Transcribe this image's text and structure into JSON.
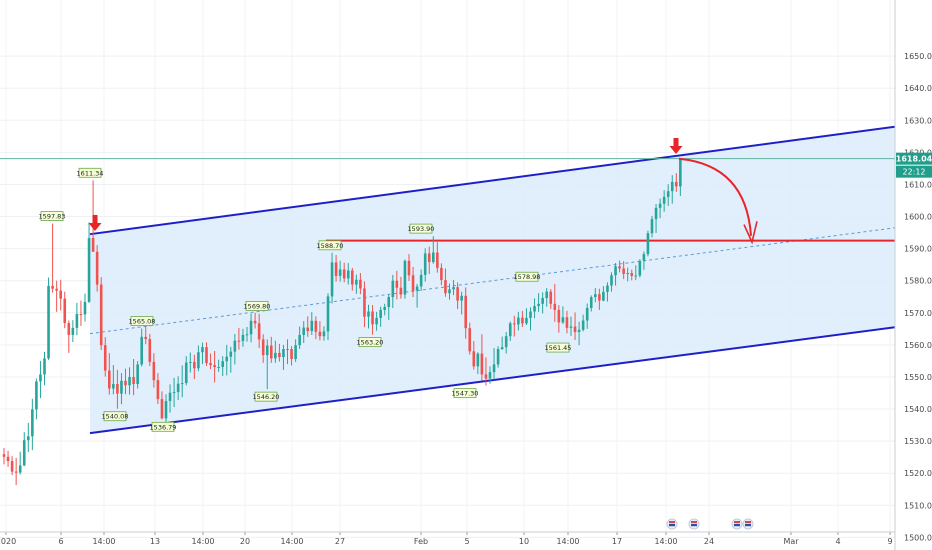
{
  "colors": {
    "up": "#26a69a",
    "down": "#ef5350",
    "channel": "#1f1fc8",
    "channel_fill": "#dcecfb",
    "resistance": "#e8252b",
    "midline": "#5b9bd5",
    "current_line": "#5fb3a2",
    "marker_arrow": "#e8252b",
    "label_bg": "#f6ffd6",
    "label_border": "#6aa84f",
    "price_badge": "#1f9e8c"
  },
  "chart_data": {
    "type": "candlestick",
    "y_axis": {
      "min": 1497,
      "max": 1665,
      "ticks": [
        "1650.00",
        "1640.00",
        "1630.00",
        "1620.00",
        "1610.00",
        "1600.00",
        "1590.00",
        "1580.00",
        "1570.00",
        "1560.00",
        "1550.00",
        "1540.00",
        "1530.00",
        "1520.00",
        "1510.00",
        "1500.00"
      ],
      "position": "right"
    },
    "x_axis": {
      "ticks": [
        "2020",
        "6",
        "14:00",
        "13",
        "14:00",
        "20",
        "14:00",
        "27",
        "Feb",
        "5",
        "10",
        "14:00",
        "17",
        "14:00",
        "24",
        "Mar",
        "4",
        "9"
      ]
    },
    "current_price": {
      "value": "1618.04",
      "time": "22:12"
    },
    "price_labels": [
      "1597.83",
      "1611.34",
      "1565.08",
      "1569.80",
      "1588.70",
      "1593.90",
      "1578.98",
      "1540.08",
      "1536.79",
      "1546.20",
      "1563.20",
      "1547.30",
      "1561.45"
    ],
    "channel": {
      "upper_start": 1594.5,
      "upper_end": 1628,
      "lower_start": 1532.5,
      "lower_end": 1565.5,
      "mid_start": 1563.5,
      "mid_end": 1596.5
    },
    "resistance_level": 1592.5,
    "candles": [
      [
        1525.9,
        1527.8,
        1522.7,
        1525.1
      ],
      [
        1525.1,
        1527.0,
        1522.0,
        1523.8
      ],
      [
        1523.8,
        1525.3,
        1519.4,
        1520.5
      ],
      [
        1520.5,
        1524.8,
        1516.3,
        1520.2
      ],
      [
        1520.2,
        1526.7,
        1519.6,
        1522.4
      ],
      [
        1522.4,
        1532.8,
        1522.2,
        1530.3
      ],
      [
        1530.3,
        1535.7,
        1526.6,
        1531.5
      ],
      [
        1531.5,
        1543.2,
        1527.2,
        1539.9
      ],
      [
        1539.9,
        1549.5,
        1536.8,
        1548.6
      ],
      [
        1548.6,
        1555.0,
        1543.4,
        1550.8
      ],
      [
        1550.8,
        1557.8,
        1547.4,
        1555.8
      ],
      [
        1555.8,
        1581.0,
        1555.3,
        1578.4
      ],
      [
        1578.4,
        1597.8,
        1576.3,
        1577.5
      ],
      [
        1577.5,
        1580.0,
        1570.3,
        1576.9
      ],
      [
        1576.9,
        1580.3,
        1570.7,
        1574.4
      ],
      [
        1574.4,
        1576.6,
        1565.2,
        1566.8
      ],
      [
        1566.8,
        1567.6,
        1557.5,
        1563.1
      ],
      [
        1563.1,
        1567.7,
        1560.9,
        1565.3
      ],
      [
        1565.3,
        1573.1,
        1563.0,
        1569.6
      ],
      [
        1569.6,
        1573.8,
        1565.9,
        1569.5
      ],
      [
        1569.5,
        1576.0,
        1567.3,
        1573.4
      ],
      [
        1573.4,
        1598.2,
        1573.1,
        1593.3
      ],
      [
        1593.3,
        1611.3,
        1590.1,
        1589.0
      ],
      [
        1589.0,
        1591.1,
        1576.6,
        1578.8
      ],
      [
        1578.8,
        1581.1,
        1558.4,
        1559.9
      ],
      [
        1559.9,
        1562.4,
        1550.1,
        1552.0
      ],
      [
        1552.0,
        1557.4,
        1544.5,
        1546.4
      ],
      [
        1546.4,
        1553.7,
        1544.6,
        1547.8
      ],
      [
        1547.8,
        1552.2,
        1540.1,
        1544.8
      ],
      [
        1544.8,
        1551.2,
        1541.5,
        1548.8
      ],
      [
        1548.8,
        1552.6,
        1544.6,
        1547.4
      ],
      [
        1547.4,
        1553.0,
        1544.5,
        1550.0
      ],
      [
        1550.0,
        1555.6,
        1544.3,
        1547.8
      ],
      [
        1547.8,
        1555.0,
        1546.4,
        1553.9
      ],
      [
        1553.9,
        1565.1,
        1553.3,
        1562.5
      ],
      [
        1562.5,
        1566.2,
        1560.2,
        1561.8
      ],
      [
        1561.8,
        1563.4,
        1553.4,
        1554.7
      ],
      [
        1554.7,
        1557.4,
        1546.7,
        1549.0
      ],
      [
        1549.0,
        1551.2,
        1541.6,
        1543.1
      ],
      [
        1543.1,
        1545.5,
        1536.8,
        1537.1
      ],
      [
        1537.1,
        1544.6,
        1534.7,
        1542.5
      ],
      [
        1542.5,
        1547.7,
        1538.9,
        1545.1
      ],
      [
        1545.1,
        1549.7,
        1540.6,
        1545.3
      ],
      [
        1545.3,
        1550.2,
        1542.8,
        1547.9
      ],
      [
        1547.9,
        1553.6,
        1543.7,
        1548.1
      ],
      [
        1548.1,
        1556.5,
        1547.4,
        1554.5
      ],
      [
        1554.5,
        1557.6,
        1551.4,
        1554.7
      ],
      [
        1554.7,
        1556.9,
        1549.3,
        1552.7
      ],
      [
        1552.7,
        1559.8,
        1551.8,
        1557.7
      ],
      [
        1557.7,
        1560.7,
        1554.0,
        1559.3
      ],
      [
        1559.3,
        1560.8,
        1553.4,
        1554.3
      ],
      [
        1554.3,
        1557.3,
        1552.4,
        1553.7
      ],
      [
        1553.7,
        1558.1,
        1548.3,
        1553.1
      ],
      [
        1553.1,
        1555.4,
        1551.6,
        1553.1
      ],
      [
        1553.1,
        1556.5,
        1550.3,
        1554.9
      ],
      [
        1554.9,
        1560.0,
        1550.5,
        1556.3
      ],
      [
        1556.3,
        1559.4,
        1551.3,
        1557.9
      ],
      [
        1557.9,
        1563.4,
        1553.9,
        1561.3
      ],
      [
        1561.3,
        1565.3,
        1558.5,
        1561.2
      ],
      [
        1561.2,
        1565.0,
        1559.4,
        1563.1
      ],
      [
        1563.1,
        1565.6,
        1561.0,
        1563.3
      ],
      [
        1563.3,
        1569.8,
        1560.8,
        1567.5
      ],
      [
        1567.5,
        1570.0,
        1565.1,
        1566.7
      ],
      [
        1566.7,
        1569.7,
        1559.0,
        1561.7
      ],
      [
        1561.7,
        1563.3,
        1554.4,
        1556.8
      ],
      [
        1556.8,
        1561.7,
        1546.2,
        1559.8
      ],
      [
        1559.8,
        1562.5,
        1554.4,
        1555.8
      ],
      [
        1555.8,
        1561.3,
        1554.4,
        1557.5
      ],
      [
        1557.5,
        1560.3,
        1554.8,
        1556.2
      ],
      [
        1556.2,
        1560.0,
        1552.2,
        1558.7
      ],
      [
        1558.7,
        1561.7,
        1554.0,
        1558.6
      ],
      [
        1558.7,
        1559.6,
        1553.6,
        1555.6
      ],
      [
        1555.6,
        1561.7,
        1554.7,
        1559.9
      ],
      [
        1559.9,
        1565.7,
        1558.7,
        1563.1
      ],
      [
        1563.1,
        1567.4,
        1560.6,
        1565.4
      ],
      [
        1565.4,
        1568.9,
        1562.5,
        1564.3
      ],
      [
        1564.3,
        1570.2,
        1563.1,
        1567.5
      ],
      [
        1567.5,
        1568.9,
        1561.8,
        1564.1
      ],
      [
        1564.1,
        1567.4,
        1561.4,
        1562.7
      ],
      [
        1562.7,
        1565.8,
        1561.3,
        1564.2
      ],
      [
        1564.2,
        1576.1,
        1561.5,
        1575.1
      ],
      [
        1575.1,
        1588.7,
        1572.9,
        1585.7
      ],
      [
        1585.7,
        1588.0,
        1579.7,
        1581.5
      ],
      [
        1581.5,
        1586.2,
        1579.7,
        1583.5
      ],
      [
        1583.5,
        1585.6,
        1579.5,
        1580.7
      ],
      [
        1580.7,
        1585.5,
        1578.8,
        1583.2
      ],
      [
        1583.2,
        1584.0,
        1576.9,
        1578.8
      ],
      [
        1578.8,
        1581.9,
        1575.9,
        1580.3
      ],
      [
        1580.3,
        1582.4,
        1575.8,
        1577.6
      ],
      [
        1577.6,
        1579.8,
        1565.5,
        1568.8
      ],
      [
        1568.8,
        1572.5,
        1565.1,
        1570.4
      ],
      [
        1570.4,
        1572.4,
        1563.2,
        1566.4
      ],
      [
        1566.4,
        1570.3,
        1564.4,
        1568.4
      ],
      [
        1568.4,
        1571.9,
        1565.6,
        1570.9
      ],
      [
        1570.9,
        1572.8,
        1569.2,
        1571.8
      ],
      [
        1571.8,
        1575.6,
        1567.8,
        1574.9
      ],
      [
        1574.9,
        1581.8,
        1571.5,
        1580.0
      ],
      [
        1580.0,
        1583.1,
        1574.2,
        1577.8
      ],
      [
        1577.8,
        1581.2,
        1574.4,
        1575.7
      ],
      [
        1575.7,
        1586.6,
        1574.4,
        1586.2
      ],
      [
        1586.2,
        1588.3,
        1579.9,
        1581.7
      ],
      [
        1581.7,
        1584.3,
        1574.9,
        1576.9
      ],
      [
        1576.9,
        1579.0,
        1571.6,
        1578.2
      ],
      [
        1578.2,
        1583.5,
        1576.8,
        1581.8
      ],
      [
        1581.8,
        1590.1,
        1579.7,
        1588.5
      ],
      [
        1588.5,
        1590.6,
        1582.1,
        1585.8
      ],
      [
        1585.8,
        1593.9,
        1585.3,
        1588.8
      ],
      [
        1588.8,
        1592.0,
        1582.5,
        1584.0
      ],
      [
        1584.0,
        1585.4,
        1578.6,
        1580.2
      ],
      [
        1580.2,
        1583.8,
        1575.0,
        1576.1
      ],
      [
        1576.1,
        1579.1,
        1574.1,
        1577.3
      ],
      [
        1577.3,
        1580.2,
        1575.5,
        1578.0
      ],
      [
        1578.0,
        1579.5,
        1571.2,
        1573.8
      ],
      [
        1573.8,
        1576.6,
        1569.5,
        1575.3
      ],
      [
        1575.3,
        1577.9,
        1561.9,
        1565.2
      ],
      [
        1565.2,
        1566.9,
        1557.0,
        1558.0
      ],
      [
        1558.0,
        1561.2,
        1552.3,
        1553.3
      ],
      [
        1553.3,
        1557.7,
        1550.9,
        1557.3
      ],
      [
        1557.3,
        1563.3,
        1548.9,
        1550.8
      ],
      [
        1550.8,
        1556.1,
        1547.3,
        1549.5
      ],
      [
        1549.5,
        1553.3,
        1547.9,
        1551.5
      ],
      [
        1551.5,
        1559.0,
        1549.2,
        1553.9
      ],
      [
        1553.9,
        1559.6,
        1552.9,
        1558.7
      ],
      [
        1558.7,
        1562.6,
        1558.4,
        1559.3
      ],
      [
        1559.3,
        1564.0,
        1557.3,
        1562.7
      ],
      [
        1562.7,
        1567.3,
        1561.2,
        1566.7
      ],
      [
        1566.7,
        1569.1,
        1562.6,
        1566.4
      ],
      [
        1566.4,
        1570.3,
        1564.5,
        1568.5
      ],
      [
        1568.5,
        1570.6,
        1565.6,
        1566.7
      ],
      [
        1566.7,
        1571.4,
        1566.2,
        1568.4
      ],
      [
        1568.4,
        1571.7,
        1564.5,
        1570.4
      ],
      [
        1570.4,
        1574.5,
        1568.3,
        1572.1
      ],
      [
        1572.1,
        1576.1,
        1570.3,
        1572.8
      ],
      [
        1572.8,
        1576.4,
        1569.8,
        1574.6
      ],
      [
        1574.6,
        1577.7,
        1571.9,
        1576.6
      ],
      [
        1576.6,
        1577.4,
        1571.2,
        1572.8
      ],
      [
        1572.8,
        1579.0,
        1567.2,
        1570.9
      ],
      [
        1570.9,
        1572.4,
        1563.8,
        1567.0
      ],
      [
        1567.0,
        1572.0,
        1566.5,
        1568.6
      ],
      [
        1568.6,
        1570.6,
        1563.6,
        1565.3
      ],
      [
        1565.3,
        1568.8,
        1562.8,
        1565.7
      ],
      [
        1565.7,
        1570.1,
        1561.5,
        1564.0
      ],
      [
        1564.0,
        1567.2,
        1559.9,
        1564.7
      ],
      [
        1564.7,
        1569.4,
        1564.2,
        1567.6
      ],
      [
        1567.6,
        1572.9,
        1565.0,
        1571.5
      ],
      [
        1571.5,
        1575.4,
        1570.4,
        1574.9
      ],
      [
        1574.9,
        1577.7,
        1573.3,
        1575.8
      ],
      [
        1575.8,
        1577.5,
        1570.9,
        1573.8
      ],
      [
        1573.8,
        1578.3,
        1573.6,
        1576.5
      ],
      [
        1576.5,
        1579.5,
        1573.5,
        1578.5
      ],
      [
        1578.5,
        1582.6,
        1576.6,
        1581.7
      ],
      [
        1581.7,
        1585.5,
        1578.5,
        1584.5
      ],
      [
        1584.5,
        1586.3,
        1582.6,
        1583.8
      ],
      [
        1583.8,
        1586.1,
        1580.5,
        1582.1
      ],
      [
        1582.1,
        1584.1,
        1579.8,
        1582.4
      ],
      [
        1582.4,
        1583.5,
        1580.1,
        1581.5
      ],
      [
        1581.5,
        1584.8,
        1580.2,
        1581.6
      ],
      [
        1581.6,
        1586.7,
        1581.0,
        1586.2
      ],
      [
        1586.2,
        1589.1,
        1583.4,
        1588.3
      ],
      [
        1588.3,
        1595.6,
        1587.6,
        1594.8
      ],
      [
        1594.8,
        1600.2,
        1593.5,
        1599.2
      ],
      [
        1599.2,
        1603.9,
        1594.9,
        1602.7
      ],
      [
        1602.7,
        1605.6,
        1599.5,
        1604.0
      ],
      [
        1604.0,
        1608.2,
        1601.5,
        1606.1
      ],
      [
        1606.1,
        1610.1,
        1603.3,
        1607.9
      ],
      [
        1607.9,
        1612.9,
        1604.0,
        1610.8
      ],
      [
        1610.8,
        1613.5,
        1607.7,
        1609.4
      ],
      [
        1609.4,
        1618.0,
        1606.4,
        1617.8
      ]
    ]
  }
}
